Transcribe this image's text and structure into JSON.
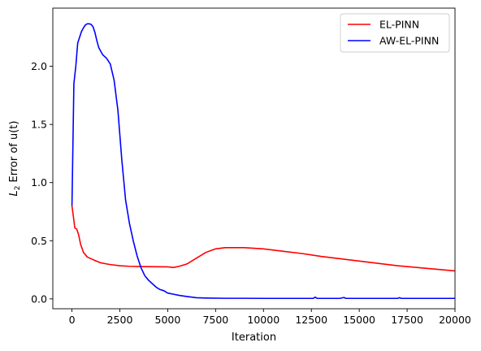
{
  "chart_data": {
    "type": "line",
    "title": "",
    "xlabel": "Iteration",
    "ylabel": "Error of u(t)",
    "ylabel_prefix": "L",
    "ylabel_subscript": "2",
    "xlim": [
      -1000,
      20000
    ],
    "ylim": [
      -0.085,
      2.5
    ],
    "xticks": [
      0,
      2500,
      5000,
      7500,
      10000,
      12500,
      15000,
      17500,
      20000
    ],
    "xtick_labels": [
      "0",
      "2500",
      "5000",
      "7500",
      "10000",
      "12500",
      "15000",
      "17500",
      "20000"
    ],
    "yticks": [
      0.0,
      0.5,
      1.0,
      1.5,
      2.0
    ],
    "ytick_labels": [
      "0.0",
      "0.5",
      "1.0",
      "1.5",
      "2.0"
    ],
    "grid": false,
    "legend_position": "top-right",
    "series": [
      {
        "name": "EL-PINN",
        "color": "#ff0000",
        "x": [
          0,
          80,
          150,
          250,
          350,
          450,
          600,
          800,
          1000,
          1200,
          1500,
          2000,
          2500,
          3000,
          3500,
          4000,
          4500,
          5000,
          5300,
          5600,
          6000,
          6500,
          7000,
          7500,
          8000,
          8500,
          9000,
          9500,
          10000,
          11000,
          12000,
          13000,
          14000,
          15000,
          16000,
          17000,
          18000,
          19000,
          20000
        ],
        "y": [
          0.8,
          0.7,
          0.61,
          0.6,
          0.55,
          0.47,
          0.4,
          0.36,
          0.345,
          0.33,
          0.31,
          0.295,
          0.285,
          0.28,
          0.278,
          0.277,
          0.276,
          0.275,
          0.27,
          0.28,
          0.3,
          0.35,
          0.4,
          0.43,
          0.44,
          0.44,
          0.44,
          0.435,
          0.43,
          0.41,
          0.39,
          0.365,
          0.345,
          0.325,
          0.305,
          0.285,
          0.27,
          0.255,
          0.24
        ]
      },
      {
        "name": "AW-EL-PINN",
        "color": "#0000ff",
        "x": [
          0,
          100,
          200,
          300,
          400,
          500,
          600,
          700,
          800,
          900,
          1000,
          1100,
          1200,
          1300,
          1400,
          1500,
          1600,
          1800,
          2000,
          2200,
          2400,
          2600,
          2800,
          3000,
          3200,
          3400,
          3600,
          3800,
          4000,
          4200,
          4400,
          4600,
          4800,
          5000,
          5300,
          5600,
          6000,
          6500,
          7000,
          8000,
          9000,
          10000,
          12000,
          12600,
          12700,
          12800,
          14000,
          14200,
          14300,
          14400,
          17000,
          17100,
          17200,
          20000
        ],
        "y": [
          0.8,
          1.85,
          2.0,
          2.2,
          2.25,
          2.3,
          2.33,
          2.355,
          2.365,
          2.365,
          2.36,
          2.34,
          2.29,
          2.22,
          2.16,
          2.13,
          2.1,
          2.07,
          2.02,
          1.88,
          1.62,
          1.2,
          0.85,
          0.65,
          0.5,
          0.37,
          0.27,
          0.2,
          0.16,
          0.13,
          0.1,
          0.08,
          0.07,
          0.05,
          0.04,
          0.03,
          0.02,
          0.01,
          0.007,
          0.005,
          0.005,
          0.004,
          0.004,
          0.004,
          0.015,
          0.004,
          0.004,
          0.012,
          0.004,
          0.004,
          0.004,
          0.01,
          0.004,
          0.004
        ]
      }
    ]
  }
}
